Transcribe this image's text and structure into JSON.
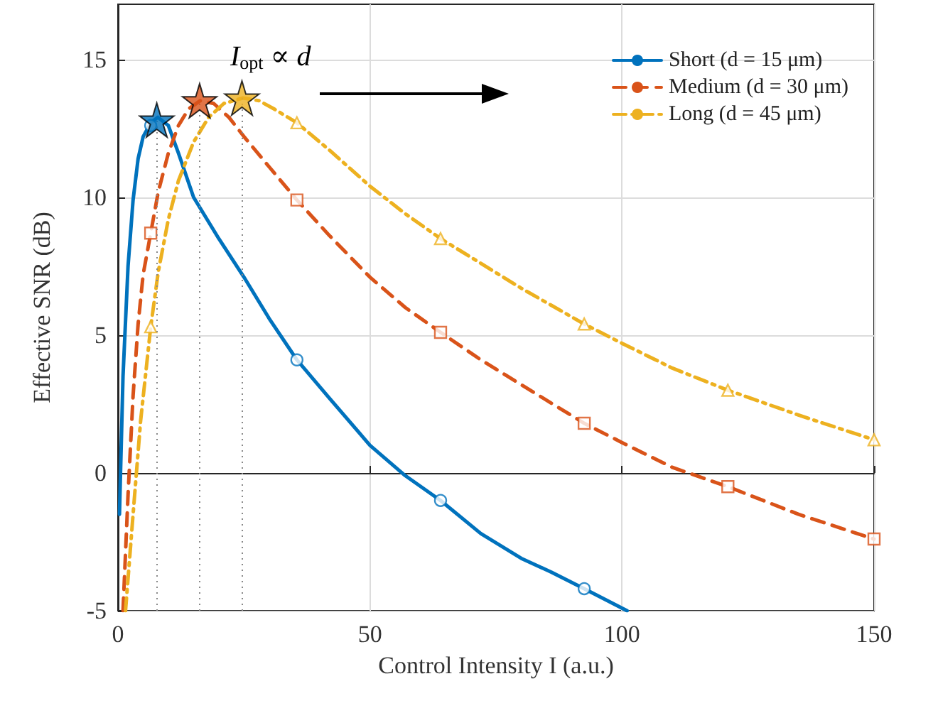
{
  "chart_data": {
    "type": "line",
    "xlabel": "Control Intensity I (a.u.)",
    "ylabel": "Effective SNR (dB)",
    "xlim": [
      0,
      150
    ],
    "xticks": [
      0,
      50,
      100,
      150
    ],
    "ylim": [
      -5,
      17
    ],
    "yticks": [
      -5,
      0,
      5,
      10,
      15
    ],
    "grid": true,
    "legend": "top right",
    "marker": "none",
    "annotations": [
      "I$_{opt}$ ∝ d"
    ],
    "series": [
      {
        "name": "Short (d = 15 μm)",
        "color": "#0072bd",
        "line_style": "solid",
        "x": [
          0.3,
          1,
          2,
          3,
          4,
          5,
          6.5,
          7.9,
          10,
          12,
          15,
          20,
          25,
          30,
          35.5,
          42,
          50,
          57,
          64,
          72,
          80,
          86,
          92.5,
          101
        ],
        "values": [
          -1.5,
          3.5,
          7.5,
          9.9,
          11.4,
          12.2,
          12.7,
          12.9,
          12.6,
          11.6,
          10,
          8.5,
          7.1,
          5.6,
          4.1,
          2.7,
          1.0,
          -0.1,
          -1.0,
          -2.2,
          -3.1,
          -3.6,
          -4.2,
          -5
        ]
      },
      {
        "name": "Medium (d = 30 μm)",
        "color": "#d95319",
        "line_style": "dashed",
        "x": [
          1,
          2,
          3,
          4,
          5,
          6.5,
          8,
          10,
          12,
          14,
          16.3,
          19,
          22,
          25,
          30,
          35.5,
          42,
          50,
          57,
          64,
          72,
          80,
          92.5,
          100,
          110,
          121,
          135,
          150
        ],
        "values": [
          -5,
          -0.8,
          2.8,
          5.4,
          7.2,
          8.7,
          10.2,
          11.6,
          12.6,
          13.2,
          13.5,
          13.4,
          12.9,
          12.2,
          11.1,
          9.9,
          8.6,
          7.1,
          6.0,
          5.1,
          4.1,
          3.2,
          1.8,
          1.1,
          0.2,
          -0.5,
          -1.5,
          -2.4
        ]
      },
      {
        "name": "Long (d = 45 μm)",
        "color": "#edb120",
        "line_style": "dashdot",
        "x": [
          1.5,
          3,
          4.5,
          6.5,
          8,
          10,
          12,
          15,
          18,
          21,
          24.8,
          28,
          31,
          35.5,
          42,
          50,
          57,
          64,
          72,
          80,
          92.5,
          100,
          110,
          121,
          135,
          150
        ],
        "values": [
          -5,
          -1.5,
          1.9,
          5.3,
          7.3,
          9.2,
          10.6,
          12.0,
          12.9,
          13.4,
          13.6,
          13.5,
          13.2,
          12.7,
          11.7,
          10.4,
          9.4,
          8.5,
          7.6,
          6.7,
          5.4,
          4.7,
          3.8,
          3.0,
          2.1,
          1.2
        ]
      },
      {
        "type": "scatter",
        "marker": "circle",
        "color": "#0072bd",
        "x": [
          6.5,
          35.5,
          64,
          92.5
        ],
        "values": [
          12.6,
          4.1,
          -1.0,
          -4.2
        ]
      },
      {
        "type": "scatter",
        "marker": "square",
        "color": "#d95319",
        "x": [
          6.5,
          35.5,
          64,
          92.5,
          121,
          150
        ],
        "values": [
          8.7,
          9.9,
          5.1,
          1.8,
          -0.5,
          -2.4
        ]
      },
      {
        "type": "scatter",
        "marker": "triangle",
        "color": "#edb120",
        "x": [
          6.5,
          35.5,
          64,
          92.5,
          121,
          150
        ],
        "values": [
          5.3,
          12.7,
          8.5,
          5.4,
          3.0,
          1.2
        ]
      },
      {
        "type": "scatter",
        "marker": "star",
        "colors": [
          "#0072bd",
          "#d95319",
          "#edb120"
        ],
        "x": [
          7.7,
          16.2,
          24.6
        ],
        "values": [
          12.8,
          13.5,
          13.6
        ]
      }
    ]
  }
}
